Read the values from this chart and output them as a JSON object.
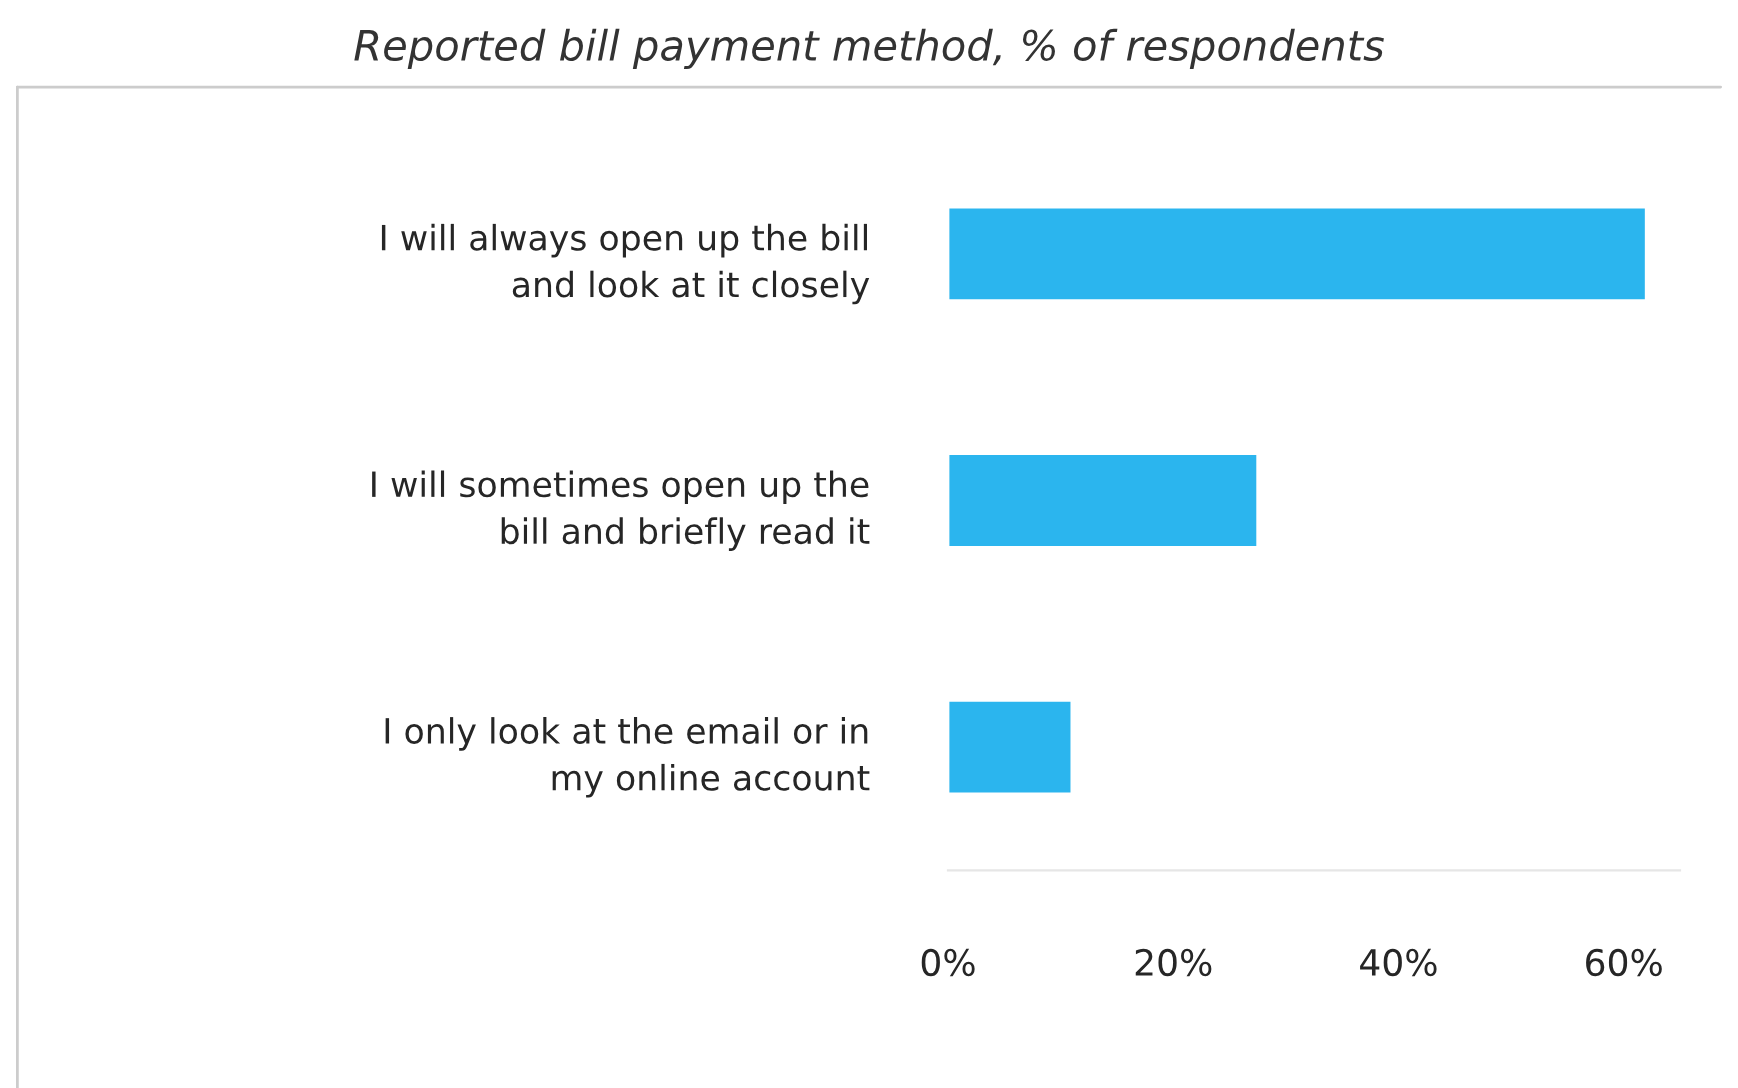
{
  "chart_data": {
    "type": "bar",
    "orientation": "horizontal",
    "title": "Reported bill payment method, % of respondents",
    "categories": [
      "I will always open up the bill\nand look at it closely",
      "I will sometimes open up the\nbill and briefly read it",
      "I only look at the email or in\nmy online account"
    ],
    "values": [
      62,
      27.5,
      11
    ],
    "color": "#2bb5ee",
    "xlim": [
      0,
      65
    ],
    "xticks": [
      {
        "value": 0,
        "label": "0%"
      },
      {
        "value": 20,
        "label": "20%"
      },
      {
        "value": 40,
        "label": "40%"
      },
      {
        "value": 60,
        "label": "60%"
      }
    ],
    "grid": false,
    "legend": false
  }
}
